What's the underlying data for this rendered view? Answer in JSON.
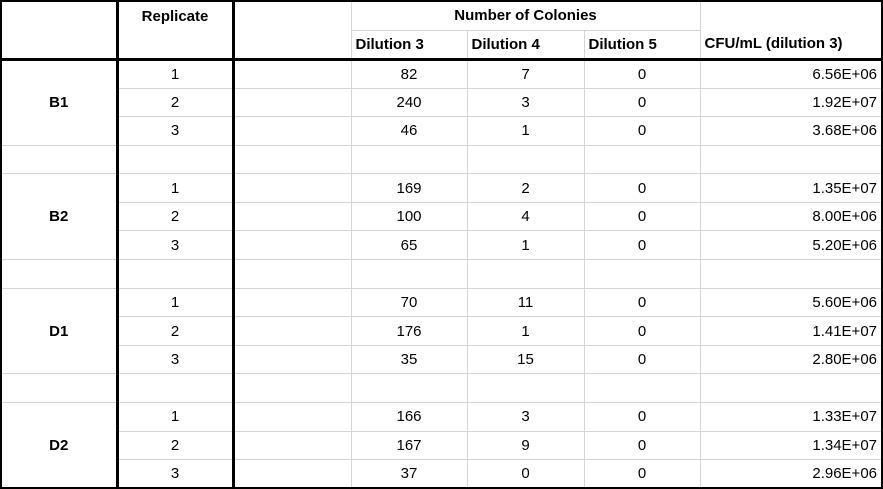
{
  "header": {
    "replicate": "Replicate",
    "number_of_colonies": "Number of Colonies",
    "dilution3": "Dilution 3",
    "dilution4": "Dilution 4",
    "dilution5": "Dilution 5",
    "cfu": "CFU/mL (dilution 3)"
  },
  "groups": [
    {
      "label": "B1",
      "rows": [
        {
          "rep": "1",
          "d3": "82",
          "d4": "7",
          "d5": "0",
          "cfu": "6.56E+06"
        },
        {
          "rep": "2",
          "d3": "240",
          "d4": "3",
          "d5": "0",
          "cfu": "1.92E+07"
        },
        {
          "rep": "3",
          "d3": "46",
          "d4": "1",
          "d5": "0",
          "cfu": "3.68E+06"
        }
      ]
    },
    {
      "label": "B2",
      "rows": [
        {
          "rep": "1",
          "d3": "169",
          "d4": "2",
          "d5": "0",
          "cfu": "1.35E+07"
        },
        {
          "rep": "2",
          "d3": "100",
          "d4": "4",
          "d5": "0",
          "cfu": "8.00E+06"
        },
        {
          "rep": "3",
          "d3": "65",
          "d4": "1",
          "d5": "0",
          "cfu": "5.20E+06"
        }
      ]
    },
    {
      "label": "D1",
      "rows": [
        {
          "rep": "1",
          "d3": "70",
          "d4": "11",
          "d5": "0",
          "cfu": "5.60E+06"
        },
        {
          "rep": "2",
          "d3": "176",
          "d4": "1",
          "d5": "0",
          "cfu": "1.41E+07"
        },
        {
          "rep": "3",
          "d3": "35",
          "d4": "15",
          "d5": "0",
          "cfu": "2.80E+06"
        }
      ]
    },
    {
      "label": "D2",
      "rows": [
        {
          "rep": "1",
          "d3": "166",
          "d4": "3",
          "d5": "0",
          "cfu": "1.33E+07"
        },
        {
          "rep": "2",
          "d3": "167",
          "d4": "9",
          "d5": "0",
          "cfu": "1.34E+07"
        },
        {
          "rep": "3",
          "d3": "37",
          "d4": "0",
          "d5": "0",
          "cfu": "2.96E+06"
        }
      ]
    }
  ]
}
